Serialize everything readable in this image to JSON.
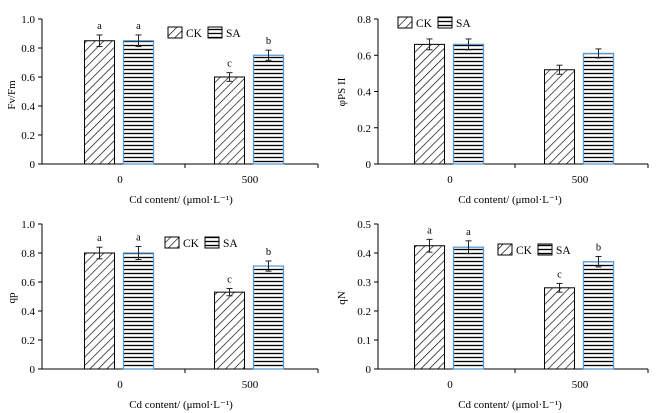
{
  "chart_data": [
    {
      "type": "bar",
      "ylabel": "Fv/Fm",
      "xlabel": "Cd content/ (μmol·L⁻¹)",
      "categories": [
        "0",
        "500"
      ],
      "ylim": [
        0,
        1.0
      ],
      "ytick_labels": [
        "0",
        "0.2",
        "0.4",
        "0.6",
        "0.8",
        "1.0"
      ],
      "series": [
        {
          "name": "CK",
          "values": [
            0.85,
            0.6
          ],
          "errors": [
            0.04,
            0.03
          ],
          "letters": [
            "a",
            "c"
          ]
        },
        {
          "name": "SA",
          "values": [
            0.85,
            0.75
          ],
          "errors": [
            0.04,
            0.035
          ],
          "letters": [
            "a",
            "b"
          ]
        }
      ],
      "legend": "top-right"
    },
    {
      "type": "bar",
      "ylabel": "φPS II",
      "xlabel": "Cd content/ (μmol·L⁻¹)",
      "categories": [
        "0",
        "500"
      ],
      "ylim": [
        0,
        0.8
      ],
      "ytick_labels": [
        "0",
        "0.2",
        "0.4",
        "0.6",
        "0.8"
      ],
      "series": [
        {
          "name": "CK",
          "values": [
            0.66,
            0.52
          ],
          "errors": [
            0.03,
            0.025
          ],
          "letters": [
            "",
            ""
          ]
        },
        {
          "name": "SA",
          "values": [
            0.66,
            0.61
          ],
          "errors": [
            0.03,
            0.025
          ],
          "letters": [
            "",
            ""
          ]
        }
      ],
      "legend": "top-left"
    },
    {
      "type": "bar",
      "ylabel": "qp",
      "xlabel": "Cd content/ (μmol·L⁻¹)",
      "categories": [
        "0",
        "500"
      ],
      "ylim": [
        0,
        1.0
      ],
      "ytick_labels": [
        "0",
        "0.2",
        "0.4",
        "0.6",
        "0.8",
        "1.0"
      ],
      "series": [
        {
          "name": "CK",
          "values": [
            0.8,
            0.53
          ],
          "errors": [
            0.04,
            0.025
          ],
          "letters": [
            "a",
            "c"
          ]
        },
        {
          "name": "SA",
          "values": [
            0.8,
            0.71
          ],
          "errors": [
            0.045,
            0.035
          ],
          "letters": [
            "a",
            "b"
          ]
        }
      ],
      "legend": "top-right"
    },
    {
      "type": "bar",
      "ylabel": "qN",
      "xlabel": "Cd content/ (μmol·L⁻¹)",
      "categories": [
        "0",
        "500"
      ],
      "ylim": [
        0,
        0.5
      ],
      "ytick_labels": [
        "0",
        "0.1",
        "0.2",
        "0.3",
        "0.4",
        "0.5"
      ],
      "series": [
        {
          "name": "CK",
          "values": [
            0.425,
            0.28
          ],
          "errors": [
            0.022,
            0.015
          ],
          "letters": [
            "a",
            "c"
          ]
        },
        {
          "name": "SA",
          "values": [
            0.42,
            0.37
          ],
          "errors": [
            0.022,
            0.018
          ],
          "letters": [
            "a",
            "b"
          ]
        }
      ],
      "legend": "top-right"
    }
  ],
  "colors": {
    "axis": "#000000",
    "bar_stroke": "#000000",
    "sa_outline": "#5b9bd5"
  }
}
